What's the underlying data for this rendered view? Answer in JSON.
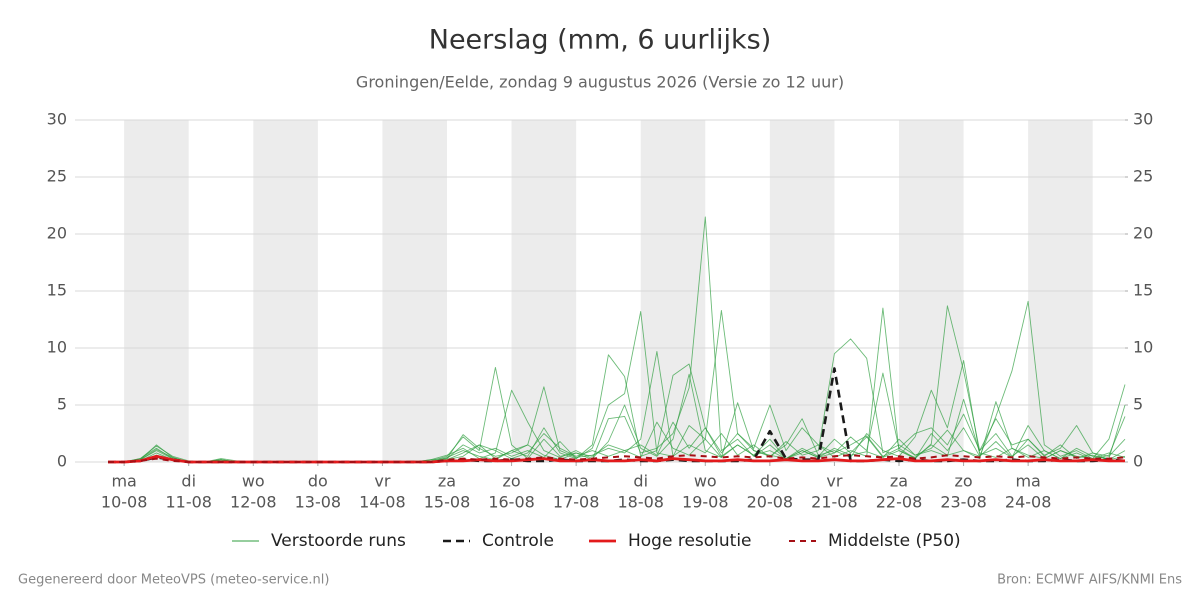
{
  "chart_data": {
    "type": "line",
    "title": "Neerslag (mm, 6 uurlijks)",
    "subtitle": "Groningen/Eelde, zondag  9 augustus 2026 (Versie zo 12 uur)",
    "footnotes": [
      "Gegenereerd door MeteoVPS (meteo-service.nl)",
      "Bron: ECMWF AIFS/KNMI Ens"
    ],
    "xlim": [
      0,
      63
    ],
    "xticks": [
      {
        "value": 1,
        "label": "ma",
        "date": "10-08"
      },
      {
        "value": 5,
        "label": "di",
        "date": "11-08"
      },
      {
        "value": 9,
        "label": "wo",
        "date": "12-08"
      },
      {
        "value": 13,
        "label": "do",
        "date": "13-08"
      },
      {
        "value": 17,
        "label": "vr",
        "date": "14-08"
      },
      {
        "value": 21,
        "label": "za",
        "date": "15-08"
      },
      {
        "value": 25,
        "label": "zo",
        "date": "16-08"
      },
      {
        "value": 29,
        "label": "ma",
        "date": "17-08"
      },
      {
        "value": 33,
        "label": "di",
        "date": "18-08"
      },
      {
        "value": 37,
        "label": "wo",
        "date": "19-08"
      },
      {
        "value": 41,
        "label": "do",
        "date": "20-08"
      },
      {
        "value": 45,
        "label": "vr",
        "date": "21-08"
      },
      {
        "value": 49,
        "label": "za",
        "date": "22-08"
      },
      {
        "value": 53,
        "label": "zo",
        "date": "23-08"
      },
      {
        "value": 57,
        "label": "ma",
        "date": "24-08"
      }
    ],
    "ylim": [
      0,
      30
    ],
    "yticks": [
      0,
      5,
      10,
      15,
      20,
      25,
      30
    ],
    "y2lim": [
      0,
      30
    ],
    "y2ticks": [
      0,
      5,
      10,
      15,
      20,
      25,
      30
    ],
    "grid": true,
    "shade_alternate_days": true,
    "series": [
      {
        "name": "Verstoorde runs",
        "color": "#2e9e3e",
        "style": "thin",
        "values": [
          [
            0,
            0,
            0.3,
            1.2,
            0.3,
            0,
            0,
            0.2,
            0,
            0,
            0,
            0,
            0,
            0,
            0,
            0,
            0,
            0,
            0,
            0,
            0.1,
            0.5,
            2.2,
            1.0,
            8.3,
            1.5,
            0.3,
            2.0,
            0.5,
            0.8,
            0.2,
            3.8,
            4.0,
            0.8,
            1.2,
            2.5,
            6.5,
            21.5,
            1.0,
            2.0,
            0.5,
            1.5,
            0.3,
            1.2,
            0.5,
            2.0,
            0.8,
            2.2,
            0.4,
            1.0,
            0.3,
            2.5,
            1.0,
            3.0,
            0.5,
            1.8,
            0.4,
            2.0,
            0.5,
            1.5,
            0.3,
            0.8,
            0.2,
            1.0
          ],
          [
            0,
            0,
            0.2,
            1.5,
            0.4,
            0,
            0,
            0.1,
            0,
            0,
            0,
            0,
            0,
            0,
            0,
            0,
            0,
            0,
            0,
            0,
            0.2,
            0.3,
            1.5,
            0.8,
            1.2,
            0.5,
            1.0,
            0.4,
            1.8,
            0.3,
            1.2,
            5.0,
            6.0,
            13.2,
            0.8,
            0.5,
            3.2,
            2.0,
            0.4,
            1.5,
            0.6,
            2.0,
            0.3,
            1.0,
            0.4,
            0.8,
            1.5,
            2.3,
            0.5,
            1.2,
            0.3,
            1.6,
            13.7,
            8.0,
            1.0,
            2.5,
            0.5,
            1.5,
            0.3,
            1.0,
            0.4,
            0.6,
            0.2,
            0.5
          ],
          [
            0,
            0,
            0.1,
            0.8,
            0.2,
            0,
            0,
            0.3,
            0.1,
            0,
            0,
            0,
            0,
            0,
            0,
            0,
            0,
            0,
            0,
            0,
            0,
            0.2,
            0.5,
            1.5,
            0.3,
            1.0,
            1.5,
            0.6,
            0.2,
            0.8,
            0.5,
            1.5,
            1.0,
            0.4,
            3.5,
            1.2,
            0.6,
            2.0,
            13.3,
            2.5,
            1.0,
            0.6,
            0.3,
            1.0,
            0.4,
            1.2,
            0.6,
            0.9,
            0.4,
            2.0,
            0.6,
            1.2,
            2.8,
            1.0,
            0.5,
            4.0,
            8.0,
            14.1,
            1.5,
            0.5,
            1.0,
            0.3,
            2.0,
            6.8
          ],
          [
            0,
            0,
            0.2,
            1.0,
            0.3,
            0,
            0,
            0.2,
            0,
            0,
            0,
            0,
            0,
            0,
            0,
            0,
            0,
            0,
            0,
            0.1,
            0,
            0.4,
            1.0,
            0.5,
            0.2,
            1.0,
            0.5,
            3.0,
            0.8,
            0.3,
            1.5,
            9.4,
            7.5,
            0.5,
            1.0,
            7.6,
            8.6,
            3.0,
            0.5,
            1.5,
            0.6,
            1.0,
            0.3,
            0.8,
            1.5,
            0.4,
            1.0,
            0.5,
            13.5,
            1.0,
            0.4,
            1.5,
            0.6,
            1.0,
            0.3,
            5.3,
            1.2,
            0.4,
            1.0,
            0.3,
            0.8,
            0.2,
            0.6,
            4.0
          ],
          [
            0,
            0,
            0.3,
            1.4,
            0.5,
            0.1,
            0,
            0.2,
            0,
            0,
            0,
            0,
            0,
            0,
            0,
            0,
            0,
            0,
            0,
            0,
            0,
            0.3,
            2.4,
            1.2,
            0.5,
            0.8,
            1.5,
            6.6,
            1.0,
            0.4,
            0.6,
            1.2,
            0.8,
            2.0,
            9.7,
            0.5,
            1.5,
            0.8,
            2.5,
            0.6,
            1.5,
            0.4,
            1.8,
            0.6,
            1.0,
            9.5,
            10.8,
            9.1,
            0.8,
            1.5,
            0.6,
            1.0,
            0.5,
            5.5,
            0.8,
            0.4,
            1.2,
            0.6,
            0.3,
            1.0,
            0.5,
            0.3,
            0.8,
            0.4
          ],
          [
            0,
            0,
            0.1,
            0.6,
            0.2,
            0,
            0,
            0.1,
            0,
            0,
            0,
            0,
            0,
            0,
            0,
            0,
            0,
            0,
            0,
            0,
            0.2,
            0.6,
            1.2,
            0.3,
            0.8,
            6.3,
            3.5,
            1.0,
            0.4,
            1.0,
            0.3,
            1.8,
            5.0,
            1.2,
            0.5,
            2.0,
            7.7,
            1.0,
            0.4,
            5.2,
            1.0,
            0.5,
            1.5,
            3.8,
            0.6,
            1.0,
            0.4,
            2.5,
            1.0,
            0.5,
            2.2,
            6.3,
            3.0,
            8.9,
            0.6,
            1.2,
            0.4,
            3.2,
            1.0,
            0.3,
            1.2,
            0.5,
            0.3,
            5.0
          ],
          [
            0,
            0,
            0.2,
            1.1,
            0.4,
            0,
            0,
            0.1,
            0,
            0,
            0,
            0,
            0,
            0,
            0,
            0,
            0,
            0,
            0,
            0,
            0.1,
            0.2,
            0.8,
            1.5,
            1.0,
            0.3,
            0.8,
            2.5,
            1.2,
            0.5,
            1.0,
            0.5,
            1.0,
            1.5,
            0.6,
            3.5,
            1.2,
            3.0,
            0.8,
            2.5,
            1.2,
            5.0,
            1.0,
            3.0,
            1.5,
            0.8,
            2.2,
            1.0,
            7.8,
            1.2,
            2.5,
            3.0,
            1.5,
            4.2,
            1.0,
            3.8,
            1.5,
            2.0,
            0.6,
            1.2,
            3.2,
            0.8,
            0.5,
            2.0
          ]
        ]
      },
      {
        "name": "Controle",
        "color": "#1a1a1a",
        "style": "dashed",
        "values": [
          0,
          0,
          0.1,
          0.4,
          0.2,
          0,
          0,
          0,
          0,
          0,
          0,
          0,
          0,
          0,
          0,
          0,
          0,
          0,
          0,
          0,
          0,
          0.1,
          0.2,
          0.1,
          0.1,
          0.2,
          0.1,
          0.1,
          0.2,
          0.1,
          0.1,
          0.1,
          0.2,
          0.1,
          0.1,
          0.2,
          0.1,
          0.1,
          0.1,
          0.1,
          0.2,
          2.7,
          0.3,
          0.2,
          0.2,
          8.2,
          0.1,
          0.1,
          0.2,
          0.1,
          0.2,
          0.1,
          0.1,
          0.2,
          0.1,
          0.1,
          0.2,
          0.1,
          0.1,
          0.2,
          0.1,
          0.1,
          0.2,
          0.1
        ]
      },
      {
        "name": "Hoge resolutie",
        "color": "#e31a1c",
        "style": "solid",
        "values": [
          0,
          0,
          0.1,
          0.5,
          0.2,
          0,
          0,
          0,
          0,
          0,
          0,
          0,
          0,
          0,
          0,
          0,
          0,
          0,
          0,
          0,
          0,
          0.1,
          0.1,
          0.2,
          0.1,
          0.1,
          0.2,
          0.3,
          0.1,
          0.1,
          0.2,
          0.1,
          0.1,
          0.2,
          0.1,
          0.3,
          0.2,
          0.1,
          0.1,
          0.2,
          0.1,
          0.1,
          0.2,
          0.1,
          0.1,
          0.2,
          0.1,
          0.1,
          0.2,
          0.3,
          0.1,
          0.1,
          0.2,
          0.1,
          0.1,
          0.2,
          0.1,
          0.1,
          0.2,
          0.1,
          0.1,
          0.2,
          0.1,
          0.1
        ]
      },
      {
        "name": "Middelste (P50)",
        "color": "#a50f15",
        "style": "dashed-thin",
        "values": [
          0,
          0,
          0.1,
          0.3,
          0.1,
          0,
          0,
          0,
          0,
          0,
          0,
          0,
          0,
          0,
          0,
          0,
          0,
          0,
          0,
          0,
          0,
          0.2,
          0.3,
          0.2,
          0.3,
          0.2,
          0.3,
          0.4,
          0.3,
          0.2,
          0.3,
          0.4,
          0.5,
          0.4,
          0.3,
          0.5,
          0.6,
          0.5,
          0.4,
          0.5,
          0.4,
          0.5,
          0.3,
          0.4,
          0.3,
          0.5,
          0.6,
          0.5,
          0.4,
          0.5,
          0.3,
          0.4,
          0.6,
          0.5,
          0.4,
          0.5,
          0.4,
          0.5,
          0.4,
          0.3,
          0.4,
          0.3,
          0.3,
          0.4
        ]
      }
    ]
  }
}
